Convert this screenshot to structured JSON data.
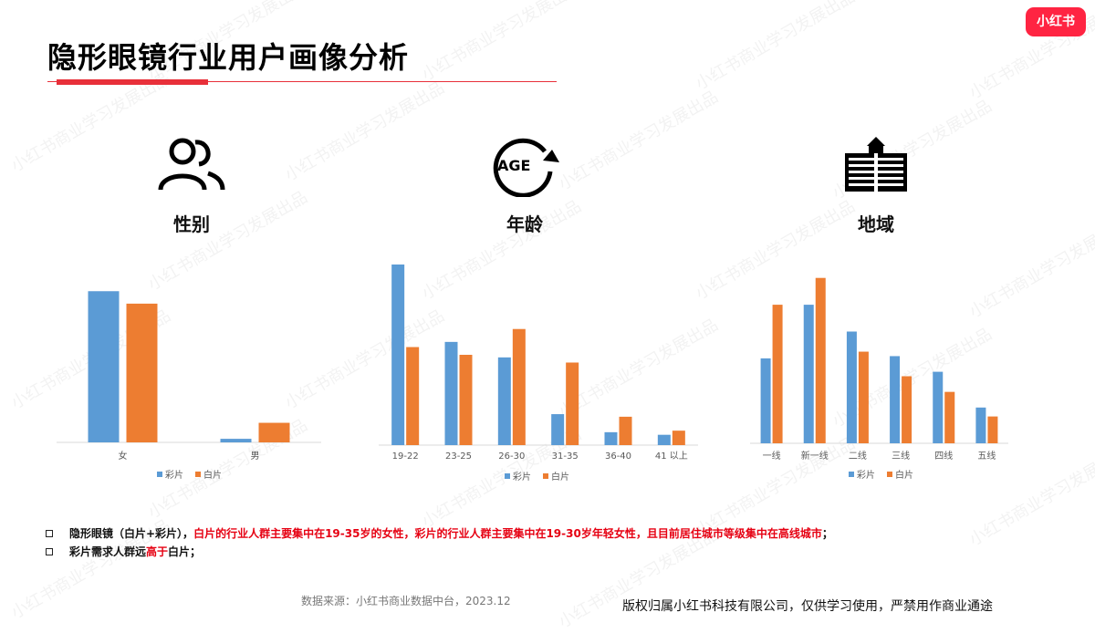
{
  "header": {
    "title": "隐形眼镜行业用户画像分析",
    "logo_text": "小红书"
  },
  "sections": [
    {
      "title": "性别",
      "icon": "people-icon"
    },
    {
      "title": "年龄",
      "icon": "age-icon",
      "icon_text": "AGE"
    },
    {
      "title": "地域",
      "icon": "building-icon"
    }
  ],
  "colors": {
    "series1": "#5b9bd5",
    "series2": "#ed7d31",
    "accent": "#e8303a"
  },
  "chart_data": [
    {
      "type": "bar",
      "categories": [
        "女",
        "男"
      ],
      "series": [
        {
          "name": "彩片",
          "values": [
            85,
            2
          ]
        },
        {
          "name": "白片",
          "values": [
            78,
            11
          ]
        }
      ],
      "ylim": [
        0,
        100
      ],
      "legend": "bottom"
    },
    {
      "type": "bar",
      "categories": [
        "19-22",
        "23-25",
        "26-30",
        "31-35",
        "36-40",
        "41 以上"
      ],
      "series": [
        {
          "name": "彩片",
          "values": [
            35,
            20,
            17,
            6,
            2.5,
            2
          ]
        },
        {
          "name": "白片",
          "values": [
            19,
            17.5,
            22.5,
            16,
            5.5,
            2.8
          ]
        }
      ],
      "ylim": [
        0,
        35
      ],
      "legend": "bottom"
    },
    {
      "type": "bar",
      "categories": [
        "一线",
        "新一线",
        "二线",
        "三线",
        "四线",
        "五线"
      ],
      "series": [
        {
          "name": "彩片",
          "values": [
            19,
            31,
            25,
            19.5,
            16,
            8
          ]
        },
        {
          "name": "白片",
          "values": [
            31,
            37,
            20.5,
            15,
            11.5,
            6
          ]
        }
      ],
      "ylim": [
        0,
        40
      ],
      "legend": "bottom"
    }
  ],
  "notes": [
    {
      "parts": [
        {
          "text": "隐形眼镜（白片+彩片），",
          "red": false
        },
        {
          "text": "白片的行业人群主要集中在19-35岁的女性，彩片的行业人群主要集中在19-30岁年轻女性，且目前居住城市等级集中在高线城市",
          "red": true
        },
        {
          "text": "；",
          "red": false
        }
      ]
    },
    {
      "parts": [
        {
          "text": "彩片需求人群远",
          "red": false
        },
        {
          "text": "高于",
          "red": true
        },
        {
          "text": "白片；",
          "red": false
        }
      ]
    }
  ],
  "footer": {
    "source": "数据来源：小红书商业数据中台，2023.12",
    "copyright": "版权归属小红书科技有限公司，仅供学习使用，严禁用作商业通途"
  },
  "watermark_text": "小红书商业学习发展出品"
}
